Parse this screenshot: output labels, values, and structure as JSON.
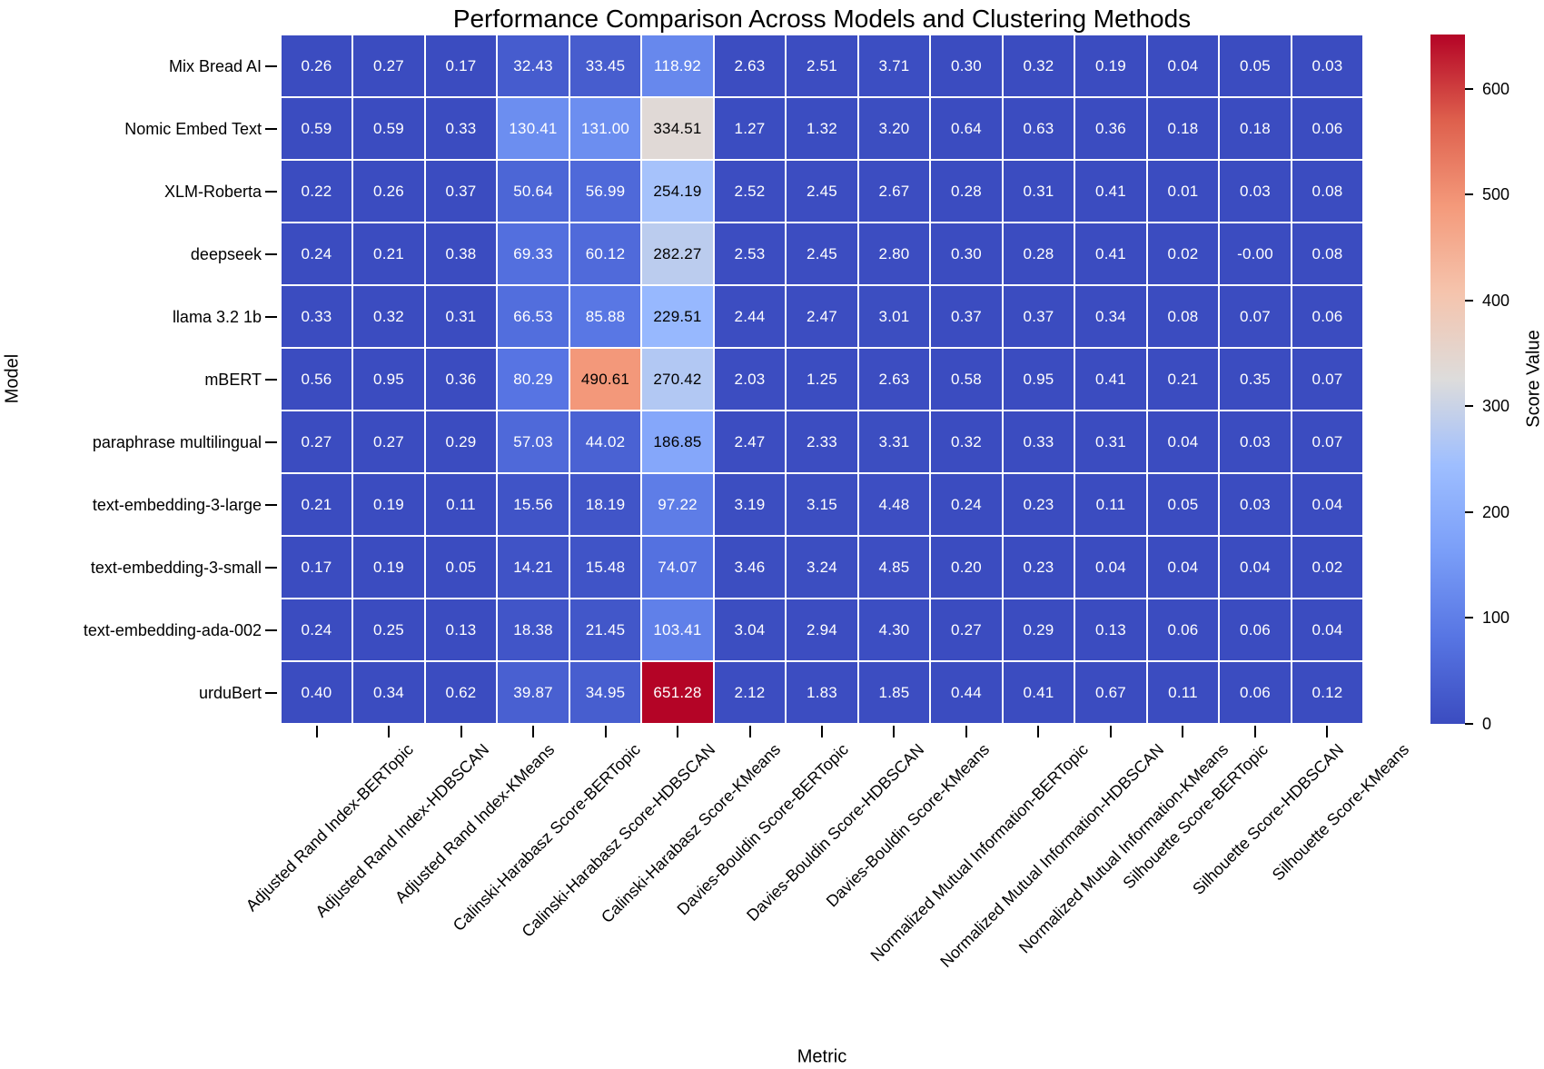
{
  "chart_data": {
    "type": "heatmap",
    "title": "Performance Comparison Across Models and Clustering Methods",
    "xlabel": "Metric",
    "ylabel": "Model",
    "colorbar_label": "Score Value",
    "colormap": "coolwarm",
    "vmin": 0,
    "vmax": 651.28,
    "colorbar_ticks": [
      0,
      100,
      200,
      300,
      400,
      500,
      600
    ],
    "rows": [
      "Mix Bread AI",
      "Nomic Embed Text",
      "XLM-Roberta",
      "deepseek",
      "llama 3.2 1b",
      "mBERT",
      "paraphrase multilingual",
      "text-embedding-3-large",
      "text-embedding-3-small",
      "text-embedding-ada-002",
      "urduBert"
    ],
    "columns": [
      "Adjusted Rand Index-BERTopic",
      "Adjusted Rand Index-HDBSCAN",
      "Adjusted Rand Index-KMeans",
      "Calinski-Harabasz Score-BERTopic",
      "Calinski-Harabasz Score-HDBSCAN",
      "Calinski-Harabasz Score-KMeans",
      "Davies-Bouldin Score-BERTopic",
      "Davies-Bouldin Score-HDBSCAN",
      "Davies-Bouldin Score-KMeans",
      "Normalized Mutual Information-BERTopic",
      "Normalized Mutual Information-HDBSCAN",
      "Normalized Mutual Information-KMeans",
      "Silhouette Score-BERTopic",
      "Silhouette Score-HDBSCAN",
      "Silhouette Score-KMeans"
    ],
    "values": [
      [
        "0.26",
        "0.27",
        "0.17",
        "32.43",
        "33.45",
        "118.92",
        "2.63",
        "2.51",
        "3.71",
        "0.30",
        "0.32",
        "0.19",
        "0.04",
        "0.05",
        "0.03"
      ],
      [
        "0.59",
        "0.59",
        "0.33",
        "130.41",
        "131.00",
        "334.51",
        "1.27",
        "1.32",
        "3.20",
        "0.64",
        "0.63",
        "0.36",
        "0.18",
        "0.18",
        "0.06"
      ],
      [
        "0.22",
        "0.26",
        "0.37",
        "50.64",
        "56.99",
        "254.19",
        "2.52",
        "2.45",
        "2.67",
        "0.28",
        "0.31",
        "0.41",
        "0.01",
        "0.03",
        "0.08"
      ],
      [
        "0.24",
        "0.21",
        "0.38",
        "69.33",
        "60.12",
        "282.27",
        "2.53",
        "2.45",
        "2.80",
        "0.30",
        "0.28",
        "0.41",
        "0.02",
        "-0.00",
        "0.08"
      ],
      [
        "0.33",
        "0.32",
        "0.31",
        "66.53",
        "85.88",
        "229.51",
        "2.44",
        "2.47",
        "3.01",
        "0.37",
        "0.37",
        "0.34",
        "0.08",
        "0.07",
        "0.06"
      ],
      [
        "0.56",
        "0.95",
        "0.36",
        "80.29",
        "490.61",
        "270.42",
        "2.03",
        "1.25",
        "2.63",
        "0.58",
        "0.95",
        "0.41",
        "0.21",
        "0.35",
        "0.07"
      ],
      [
        "0.27",
        "0.27",
        "0.29",
        "57.03",
        "44.02",
        "186.85",
        "2.47",
        "2.33",
        "3.31",
        "0.32",
        "0.33",
        "0.31",
        "0.04",
        "0.03",
        "0.07"
      ],
      [
        "0.21",
        "0.19",
        "0.11",
        "15.56",
        "18.19",
        "97.22",
        "3.19",
        "3.15",
        "4.48",
        "0.24",
        "0.23",
        "0.11",
        "0.05",
        "0.03",
        "0.04"
      ],
      [
        "0.17",
        "0.19",
        "0.05",
        "14.21",
        "15.48",
        "74.07",
        "3.46",
        "3.24",
        "4.85",
        "0.20",
        "0.23",
        "0.04",
        "0.04",
        "0.04",
        "0.02"
      ],
      [
        "0.24",
        "0.25",
        "0.13",
        "18.38",
        "21.45",
        "103.41",
        "3.04",
        "2.94",
        "4.30",
        "0.27",
        "0.29",
        "0.13",
        "0.06",
        "0.06",
        "0.04"
      ],
      [
        "0.40",
        "0.34",
        "0.62",
        "39.87",
        "34.95",
        "651.28",
        "2.12",
        "1.83",
        "1.85",
        "0.44",
        "0.41",
        "0.67",
        "0.11",
        "0.06",
        "0.12"
      ]
    ],
    "colors": {
      "background": "#ffffff",
      "gridline": "#ffffff",
      "text": "#000000",
      "annotation_on_dark": "#ffffff",
      "annotation_on_light": "#000000",
      "colormap_anchors": [
        {
          "t": 0.0,
          "color": "#3b4cc0"
        },
        {
          "t": 0.125,
          "color": "#5775e3"
        },
        {
          "t": 0.25,
          "color": "#7a9ef8"
        },
        {
          "t": 0.375,
          "color": "#9ebeff"
        },
        {
          "t": 0.5,
          "color": "#dddcdb"
        },
        {
          "t": 0.625,
          "color": "#f5c4ad"
        },
        {
          "t": 0.75,
          "color": "#f49a7b"
        },
        {
          "t": 0.875,
          "color": "#de604d"
        },
        {
          "t": 1.0,
          "color": "#b40426"
        }
      ]
    }
  }
}
